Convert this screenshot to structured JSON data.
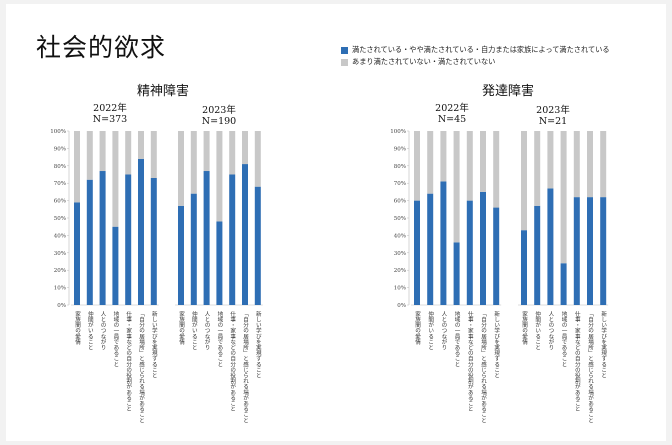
{
  "title": "社会的欲求",
  "legend": {
    "satisfied": {
      "label": "満たされている・やや満たされている・自力または家族によって満たされている",
      "color": "#2e6eb4"
    },
    "unsatisfied": {
      "label": "あまり満たされていない・満たされていない",
      "color": "#c8c8c8"
    }
  },
  "sections": [
    {
      "title": "精神障害",
      "years": [
        {
          "label": "2022年",
          "n": "N=373"
        },
        {
          "label": "2023年",
          "n": "N=190"
        }
      ]
    },
    {
      "title": "発達障害",
      "years": [
        {
          "label": "2022年",
          "n": "N=45"
        },
        {
          "label": "2023年",
          "n": "N=21"
        }
      ]
    }
  ],
  "chart_data": {
    "type": "bar",
    "stacked": true,
    "categories": [
      "家族間の愛情",
      "仲間がいること",
      "人とのつながり",
      "地域の一員であること",
      "仕事・家事などの自分の役割があること",
      "「自分の居場所」と感じられる場があること",
      "新しい学びを実現すること"
    ],
    "ylim": [
      0,
      100
    ],
    "yticks": [
      "0%",
      "10%",
      "20%",
      "30%",
      "40%",
      "50%",
      "60%",
      "70%",
      "80%",
      "90%",
      "100%"
    ],
    "panels": [
      {
        "section": "精神障害",
        "year": "2022年",
        "series": [
          {
            "name": "満たされている・やや満たされている・自力または家族によって満たされている",
            "values": [
              59,
              72,
              77,
              45,
              75,
              84,
              73
            ]
          },
          {
            "name": "あまり満たされていない・満たされていない",
            "values": [
              41,
              28,
              23,
              55,
              25,
              16,
              27
            ]
          }
        ]
      },
      {
        "section": "精神障害",
        "year": "2023年",
        "series": [
          {
            "name": "満たされている・やや満たされている・自力または家族によって満たされている",
            "values": [
              57,
              64,
              77,
              48,
              75,
              81,
              68
            ]
          },
          {
            "name": "あまり満たされていない・満たされていない",
            "values": [
              43,
              36,
              23,
              52,
              25,
              19,
              32
            ]
          }
        ]
      },
      {
        "section": "発達障害",
        "year": "2022年",
        "series": [
          {
            "name": "満たされている・やや満たされている・自力または家族によって満たされている",
            "values": [
              60,
              64,
              71,
              36,
              60,
              65,
              56
            ]
          },
          {
            "name": "あまり満たされていない・満たされていない",
            "values": [
              40,
              36,
              29,
              64,
              40,
              35,
              44
            ]
          }
        ]
      },
      {
        "section": "発達障害",
        "year": "2023年",
        "series": [
          {
            "name": "満たされている・やや満たされている・自力または家族によって満たされている",
            "values": [
              43,
              57,
              67,
              24,
              62,
              62,
              62
            ]
          },
          {
            "name": "あまり満たされていない・満たされていない",
            "values": [
              57,
              43,
              33,
              76,
              38,
              38,
              38
            ]
          }
        ]
      }
    ]
  }
}
